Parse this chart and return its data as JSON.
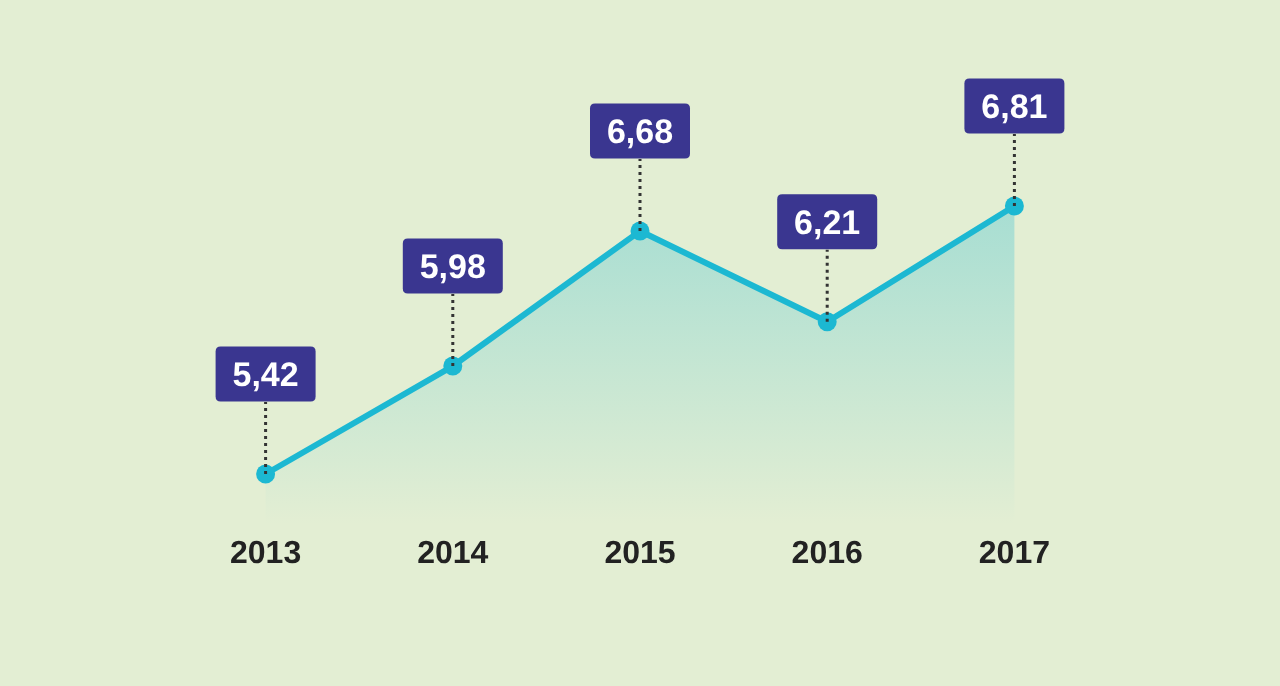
{
  "chart_data": {
    "type": "area",
    "categories": [
      "2013",
      "2014",
      "2015",
      "2016",
      "2017"
    ],
    "series": [
      {
        "color": "#1cb8d2",
        "values": [
          5.42,
          5.98,
          6.68,
          6.21,
          6.81
        ],
        "value_labels": [
          "5,42",
          "5,98",
          "6,68",
          "6,21",
          "6,81"
        ]
      }
    ],
    "marker": "circle"
  }
}
